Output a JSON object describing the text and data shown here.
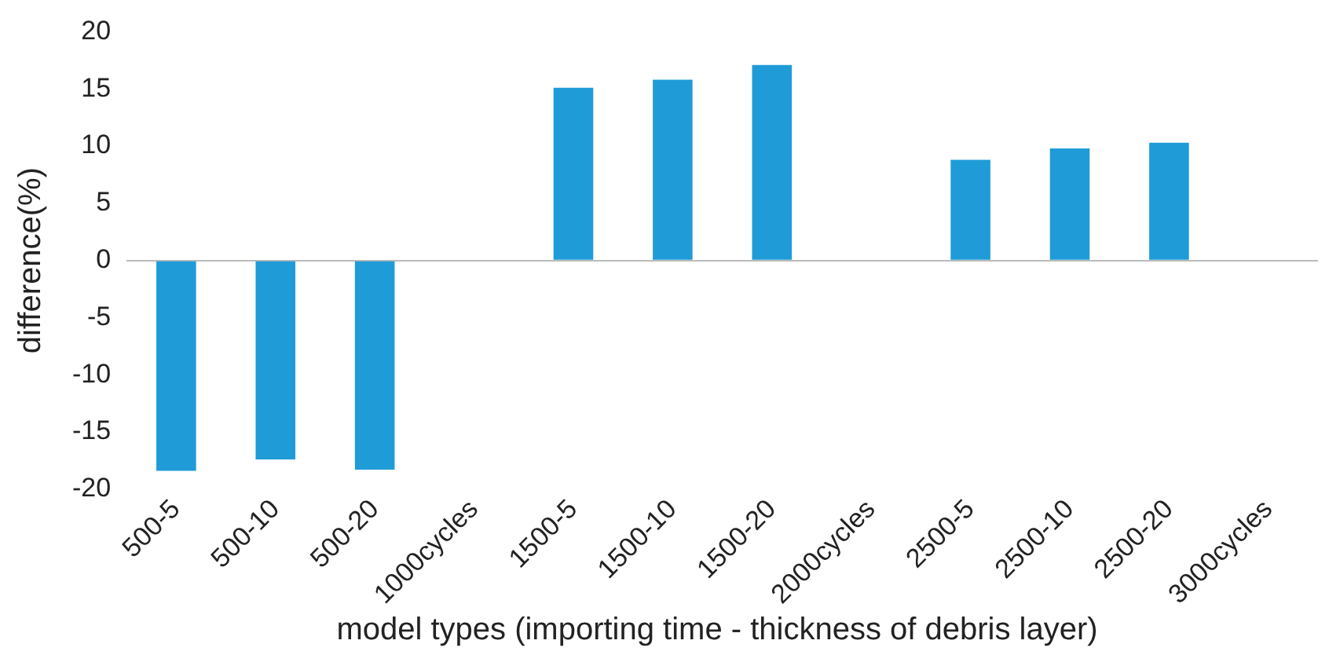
{
  "chart_data": {
    "type": "bar",
    "xlabel": "model types (importing time - thickness of debris layer)",
    "ylabel": "difference(%)",
    "categories": [
      "500-5",
      "500-10",
      "500-20",
      "1000cycles",
      "1500-5",
      "1500-10",
      "1500-20",
      "2000cycles",
      "2500-5",
      "2500-10",
      "2500-20",
      "3000cycles"
    ],
    "values": [
      -18.4,
      -17.4,
      -18.3,
      null,
      15.1,
      15.8,
      17.1,
      null,
      8.8,
      9.8,
      10.3,
      null
    ],
    "color": "#1f9bd7",
    "ylim": [
      -20,
      20
    ],
    "yticks": [
      -20,
      -15,
      -10,
      -5,
      0,
      5,
      10,
      15,
      20
    ]
  }
}
